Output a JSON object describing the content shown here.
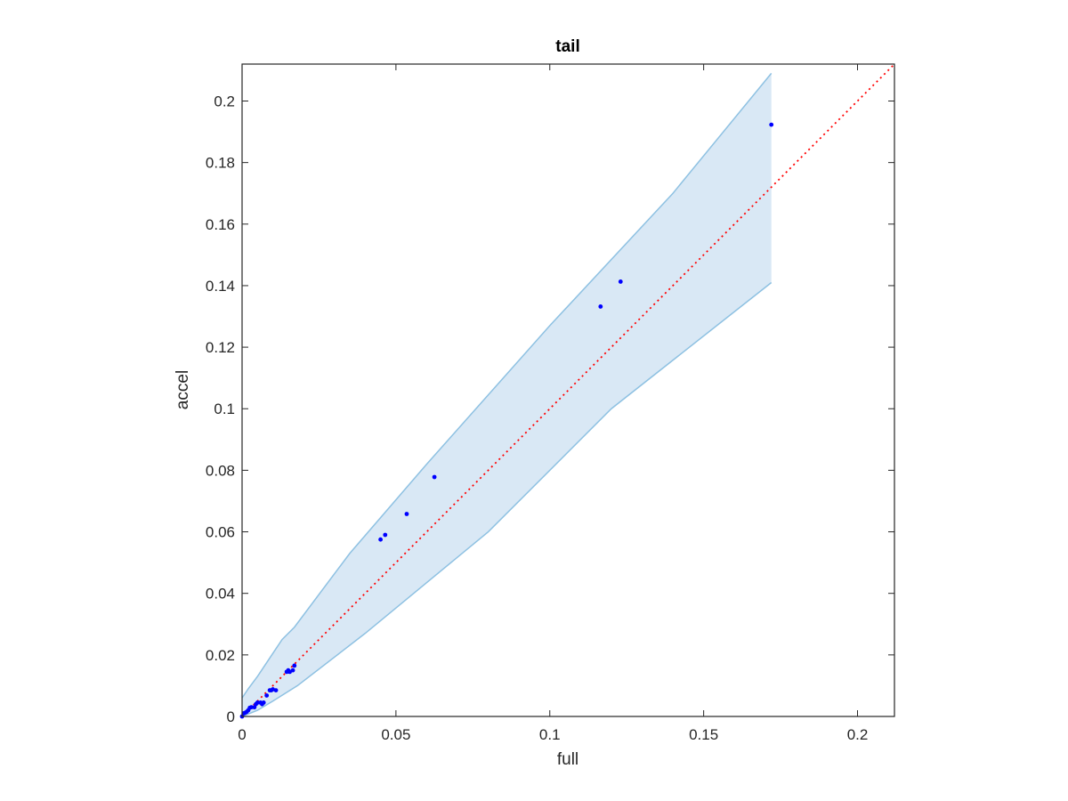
{
  "chart_data": {
    "type": "scatter",
    "title": "tail",
    "xlabel": "full",
    "ylabel": "accel",
    "xlim": [
      0,
      0.212
    ],
    "ylim": [
      0,
      0.212
    ],
    "x_ticks": [
      0,
      0.05,
      0.1,
      0.15,
      0.2
    ],
    "x_tick_labels": [
      "0",
      "0.05",
      "0.1",
      "0.15",
      "0.2"
    ],
    "y_ticks": [
      0,
      0.02,
      0.04,
      0.06,
      0.08,
      0.1,
      0.12,
      0.14,
      0.16,
      0.18,
      0.2
    ],
    "y_tick_labels": [
      "0",
      "0.02",
      "0.04",
      "0.06",
      "0.08",
      "0.1",
      "0.12",
      "0.14",
      "0.16",
      "0.18",
      "0.2"
    ],
    "grid": false,
    "band": {
      "upper": [
        [
          0,
          0.006
        ],
        [
          0.002,
          0.009
        ],
        [
          0.005,
          0.013
        ],
        [
          0.009,
          0.019
        ],
        [
          0.013,
          0.025
        ],
        [
          0.017,
          0.029
        ],
        [
          0.035,
          0.053
        ],
        [
          0.06,
          0.082
        ],
        [
          0.1,
          0.127
        ],
        [
          0.14,
          0.17
        ],
        [
          0.172,
          0.209
        ]
      ],
      "lower": [
        [
          0,
          0
        ],
        [
          0.005,
          0.002
        ],
        [
          0.01,
          0.005
        ],
        [
          0.018,
          0.01
        ],
        [
          0.04,
          0.027
        ],
        [
          0.08,
          0.06
        ],
        [
          0.12,
          0.1
        ],
        [
          0.172,
          0.141
        ]
      ],
      "fill_color": "#d9e8f5",
      "line_color": "#8ec1e2"
    },
    "reference_line": {
      "x": [
        0,
        0.212
      ],
      "y": [
        0,
        0.212
      ],
      "color": "#ff0000",
      "style": "dotted"
    },
    "series": [
      {
        "color": "#0000ff",
        "x": [
          0,
          0.0005,
          0.001,
          0.0015,
          0.002,
          0.0025,
          0.003,
          0.004,
          0.0045,
          0.005,
          0.006,
          0.0065,
          0.007,
          0.008,
          0.009,
          0.0095,
          0.01,
          0.011,
          0.0145,
          0.015,
          0.0155,
          0.0165,
          0.017,
          0.045,
          0.0465,
          0.0535,
          0.0625,
          0.1165,
          0.123,
          0.172
        ],
        "y": [
          0,
          0.001,
          0.0012,
          0.0015,
          0.002,
          0.0028,
          0.003,
          0.003,
          0.004,
          0.0045,
          0.0045,
          0.004,
          0.0045,
          0.0068,
          0.0085,
          0.0085,
          0.0088,
          0.0085,
          0.0145,
          0.015,
          0.0145,
          0.015,
          0.0165,
          0.0575,
          0.059,
          0.0658,
          0.0778,
          0.1332,
          0.1413,
          0.1923
        ]
      }
    ]
  }
}
